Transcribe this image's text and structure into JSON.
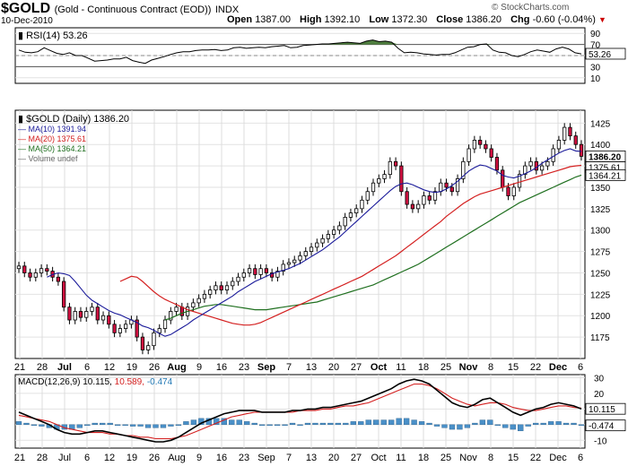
{
  "header": {
    "symbol": "$GOLD",
    "name": "(Gold - Continuous Contract (EOD))",
    "exchange": "INDX",
    "date": "10-Dec-2010",
    "watermark": "© StockCharts.com",
    "open_label": "Open",
    "open": "1387.00",
    "high_label": "High",
    "high": "1392.10",
    "low_label": "Low",
    "low": "1372.30",
    "close_label": "Close",
    "close": "1386.20",
    "chg_label": "Chg",
    "chg": "-0.60 (-0.04%)",
    "chg_arrow": "▼",
    "chg_color": "#cc0000"
  },
  "chart_data": [
    {
      "type": "line",
      "panel": "rsi",
      "legend": "RSI(14) 53.26",
      "ylim": [
        0,
        100
      ],
      "y_ticks": [
        10,
        30,
        50,
        70,
        90
      ],
      "reference_lines": [
        30,
        70
      ],
      "last_value_label": "53.26",
      "overbought_fill": "#4f7f3f",
      "values": [
        60,
        56,
        55,
        57,
        64,
        59,
        54,
        52,
        55,
        50,
        50,
        45,
        40,
        41,
        42,
        44,
        44,
        47,
        41,
        38,
        36,
        42,
        45,
        48,
        52,
        55,
        57,
        57,
        59,
        60,
        60,
        61,
        59,
        60,
        64,
        65,
        63,
        64,
        65,
        64,
        66,
        67,
        68,
        64,
        65,
        68,
        69,
        70,
        71,
        71,
        72,
        73,
        74,
        73,
        72,
        76,
        78,
        75,
        76,
        74,
        63,
        55,
        56,
        55,
        53,
        52,
        51,
        52,
        52,
        55,
        60,
        65,
        66,
        70,
        71,
        60,
        56,
        55,
        50,
        48,
        52,
        57,
        60,
        58,
        56,
        62,
        65,
        62,
        55,
        53
      ],
      "grid": true
    },
    {
      "type": "candlestick",
      "panel": "price",
      "legend": [
        {
          "label": "$GOLD (Daily) 1386.20",
          "color": "#000000"
        },
        {
          "label": "MA(10) 1391.94",
          "color": "#1a1a9a"
        },
        {
          "label": "MA(20) 1375.61",
          "color": "#d42020"
        },
        {
          "label": "MA(50) 1364.21",
          "color": "#207020"
        },
        {
          "label": "Volume undef",
          "color": "#666666"
        }
      ],
      "ylim": [
        1150,
        1440
      ],
      "y_ticks": [
        1175,
        1200,
        1225,
        1250,
        1275,
        1300,
        1325,
        1350,
        1375,
        1400,
        1425
      ],
      "last_value_labels": [
        {
          "value": 1386.2,
          "text": "1386.20"
        },
        {
          "value": 1375.61,
          "text": "1375.61"
        },
        {
          "value": 1364.21,
          "text": "1364.21"
        }
      ],
      "x_tick_labels": [
        "21",
        "28",
        "Jul",
        "6",
        "12",
        "19",
        "26",
        "Aug",
        "9",
        "16",
        "23",
        "Sep",
        "7",
        "13",
        "20",
        "27",
        "Oct",
        "11",
        "18",
        "25",
        "Nov",
        "8",
        "15",
        "22",
        "Dec",
        "6"
      ],
      "bold_ticks": [
        "Jul",
        "Aug",
        "Sep",
        "Oct",
        "Nov",
        "Dec"
      ],
      "closes": [
        1258,
        1250,
        1245,
        1250,
        1255,
        1252,
        1245,
        1240,
        1210,
        1195,
        1205,
        1198,
        1205,
        1210,
        1195,
        1200,
        1190,
        1180,
        1185,
        1190,
        1195,
        1175,
        1160,
        1165,
        1180,
        1185,
        1195,
        1205,
        1210,
        1200,
        1210,
        1215,
        1220,
        1225,
        1230,
        1235,
        1230,
        1235,
        1240,
        1245,
        1250,
        1255,
        1248,
        1255,
        1250,
        1245,
        1252,
        1260,
        1262,
        1265,
        1270,
        1275,
        1280,
        1285,
        1290,
        1295,
        1300,
        1305,
        1315,
        1320,
        1325,
        1335,
        1345,
        1355,
        1360,
        1365,
        1380,
        1375,
        1345,
        1330,
        1325,
        1330,
        1340,
        1335,
        1345,
        1355,
        1350,
        1345,
        1360,
        1380,
        1395,
        1405,
        1400,
        1395,
        1385,
        1370,
        1350,
        1340,
        1350,
        1365,
        1375,
        1380,
        1370,
        1375,
        1380,
        1395,
        1405,
        1420,
        1410,
        1400,
        1386.2
      ],
      "ma10": [
        1245,
        1248,
        1250,
        1249,
        1247,
        1240,
        1232,
        1224,
        1218,
        1214,
        1210,
        1206,
        1203,
        1201,
        1198,
        1195,
        1192,
        1188,
        1186,
        1183,
        1179,
        1176,
        1178,
        1182,
        1186,
        1190,
        1195,
        1199,
        1203,
        1207,
        1211,
        1215,
        1219,
        1223,
        1228,
        1232,
        1236,
        1240,
        1243,
        1246,
        1249,
        1251,
        1253,
        1255,
        1258,
        1261,
        1265,
        1269,
        1273,
        1277,
        1282,
        1287,
        1292,
        1298,
        1304,
        1310,
        1316,
        1322,
        1328,
        1334,
        1340,
        1346,
        1351,
        1354,
        1355,
        1353,
        1350,
        1347,
        1345,
        1344,
        1345,
        1348,
        1352,
        1357,
        1363,
        1369,
        1373,
        1376,
        1375,
        1372,
        1369,
        1364,
        1362,
        1361,
        1363,
        1366,
        1369,
        1373,
        1378,
        1382,
        1386,
        1390,
        1393,
        1395,
        1392.5,
        1391.94
      ],
      "ma20": [
        1240,
        1243,
        1246,
        1245,
        1240,
        1234,
        1228,
        1223,
        1219,
        1216,
        1213,
        1210,
        1207,
        1205,
        1203,
        1201,
        1199,
        1197,
        1195,
        1193,
        1191,
        1190,
        1189,
        1189,
        1190,
        1192,
        1195,
        1198,
        1201,
        1204,
        1207,
        1210,
        1213,
        1216,
        1219,
        1222,
        1225,
        1228,
        1231,
        1234,
        1237,
        1240,
        1243,
        1246,
        1250,
        1254,
        1258,
        1262,
        1266,
        1270,
        1275,
        1280,
        1285,
        1290,
        1295,
        1300,
        1305,
        1310,
        1316,
        1321,
        1326,
        1331,
        1335,
        1339,
        1342,
        1344,
        1346,
        1348,
        1350,
        1352,
        1354,
        1356,
        1358,
        1360,
        1362,
        1364,
        1366,
        1368,
        1370,
        1372,
        1374,
        1375,
        1375.61
      ],
      "ma50": [
        1195,
        1197,
        1200,
        1203,
        1205,
        1207,
        1209,
        1211,
        1212,
        1213,
        1213,
        1212,
        1211,
        1210,
        1209,
        1208,
        1207,
        1207,
        1207,
        1208,
        1209,
        1210,
        1211,
        1212,
        1213,
        1214,
        1215,
        1216,
        1218,
        1220,
        1222,
        1224,
        1226,
        1228,
        1230,
        1232,
        1234,
        1236,
        1239,
        1242,
        1245,
        1248,
        1251,
        1254,
        1257,
        1260,
        1264,
        1268,
        1272,
        1276,
        1280,
        1284,
        1288,
        1292,
        1296,
        1300,
        1304,
        1308,
        1312,
        1316,
        1320,
        1324,
        1328,
        1332,
        1335,
        1338,
        1341,
        1344,
        1347,
        1350,
        1353,
        1356,
        1359,
        1362,
        1364.21
      ],
      "grid": true
    },
    {
      "type": "line",
      "panel": "macd",
      "legend": [
        {
          "label": "MACD(12,26,9)",
          "value": "10.115",
          "color": "#000000"
        },
        {
          "value": "10.589",
          "color": "#d42020"
        },
        {
          "value": "-0.474",
          "color": "#1f77b4"
        }
      ],
      "ylim": [
        -15,
        32
      ],
      "y_ticks": [
        -10,
        0,
        10,
        20,
        30
      ],
      "last_value_labels": [
        {
          "value": 10.115,
          "text": "10.115"
        },
        {
          "value": -0.474,
          "text": "-0.474"
        }
      ],
      "x_tick_labels": [
        "21",
        "28",
        "Jul",
        "6",
        "12",
        "19",
        "26",
        "Aug",
        "9",
        "16",
        "23",
        "Sep",
        "7",
        "13",
        "20",
        "27",
        "Oct",
        "11",
        "18",
        "25",
        "Nov",
        "8",
        "15",
        "22",
        "Dec",
        "6"
      ],
      "macd": [
        8,
        6,
        4,
        2,
        0,
        -3,
        -5,
        -6,
        -6,
        -5,
        -4,
        -4,
        -5,
        -6,
        -7,
        -8,
        -9,
        -10,
        -11,
        -11,
        -10,
        -8,
        -5,
        -2,
        1,
        3,
        5,
        7,
        8,
        9,
        9,
        9,
        8,
        8,
        8,
        8,
        9,
        9,
        10,
        10,
        11,
        11,
        12,
        13,
        14,
        15,
        17,
        19,
        21,
        23,
        26,
        28,
        29,
        28,
        26,
        22,
        18,
        14,
        12,
        11,
        13,
        16,
        17,
        14,
        11,
        8,
        6,
        8,
        10,
        11,
        13,
        14,
        13,
        12,
        10.115
      ],
      "signal": [
        6,
        5,
        4,
        3,
        2,
        0,
        -2,
        -3,
        -4,
        -5,
        -5,
        -5,
        -6,
        -6,
        -7,
        -7,
        -8,
        -8,
        -9,
        -9,
        -9,
        -8,
        -7,
        -5,
        -3,
        -1,
        1,
        3,
        5,
        6,
        7,
        8,
        8,
        8,
        8,
        8,
        8,
        9,
        9,
        9,
        10,
        10,
        11,
        12,
        12,
        13,
        14,
        16,
        18,
        20,
        22,
        24,
        26,
        26,
        25,
        23,
        20,
        17,
        15,
        13,
        12,
        13,
        14,
        14,
        13,
        11,
        10,
        9,
        9,
        10,
        11,
        12,
        12,
        11,
        10.589
      ],
      "histogram": [
        2,
        1,
        0,
        -1,
        -2,
        -3,
        -3,
        -3,
        -2,
        0,
        1,
        1,
        1,
        0,
        0,
        -1,
        -1,
        -2,
        -2,
        -2,
        -1,
        0,
        2,
        3,
        4,
        4,
        4,
        4,
        3,
        3,
        2,
        1,
        0,
        0,
        0,
        0,
        1,
        0,
        1,
        1,
        1,
        1,
        1,
        1,
        2,
        2,
        3,
        3,
        3,
        3,
        4,
        4,
        3,
        2,
        1,
        -1,
        -2,
        -3,
        -3,
        -2,
        1,
        3,
        3,
        0,
        -2,
        -3,
        -4,
        -1,
        1,
        1,
        2,
        2,
        1,
        1,
        -0.474
      ],
      "grid": true
    }
  ]
}
